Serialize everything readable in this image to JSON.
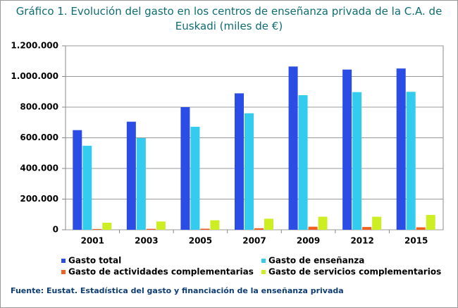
{
  "chart_data": {
    "type": "bar",
    "title": "Gráfico 1. Evolución del gasto en los centros de enseñanza privada de la C.A. de Euskadi (miles de €)",
    "source": "Fuente: Eustat. Estadística del gasto y financiación de la enseñanza privada",
    "categories": [
      "2001",
      "2003",
      "2005",
      "2007",
      "2009",
      "2012",
      "2015"
    ],
    "series": [
      {
        "name": "Gasto total",
        "color": "#2b4de6",
        "values": [
          650000,
          705000,
          800000,
          890000,
          1065000,
          1045000,
          1052000
        ]
      },
      {
        "name": "Gasto de enseñanza",
        "color": "#33ccee",
        "values": [
          548000,
          598000,
          672000,
          760000,
          878000,
          898000,
          900000
        ]
      },
      {
        "name": "Gasto de actividades complementarias",
        "color": "#f06020",
        "values": [
          5000,
          6000,
          7000,
          10000,
          20000,
          18000,
          16000
        ]
      },
      {
        "name": "Gasto de servicios complementarios",
        "color": "#ccee22",
        "values": [
          46000,
          54000,
          62000,
          72000,
          85000,
          85000,
          97000
        ]
      }
    ],
    "ylim": [
      0,
      1200000
    ],
    "yticks": [
      0,
      {
        "value": 200000,
        "label": "200.000"
      },
      {
        "value": 400000,
        "label": "400.000"
      },
      {
        "value": 600000,
        "label": "600.000"
      },
      {
        "value": 800000,
        "label": "800.000"
      },
      {
        "value": 1000000,
        "label": "1.000.000"
      },
      {
        "value": 1200000,
        "label": "1.200.000"
      }
    ],
    "grid": true
  }
}
